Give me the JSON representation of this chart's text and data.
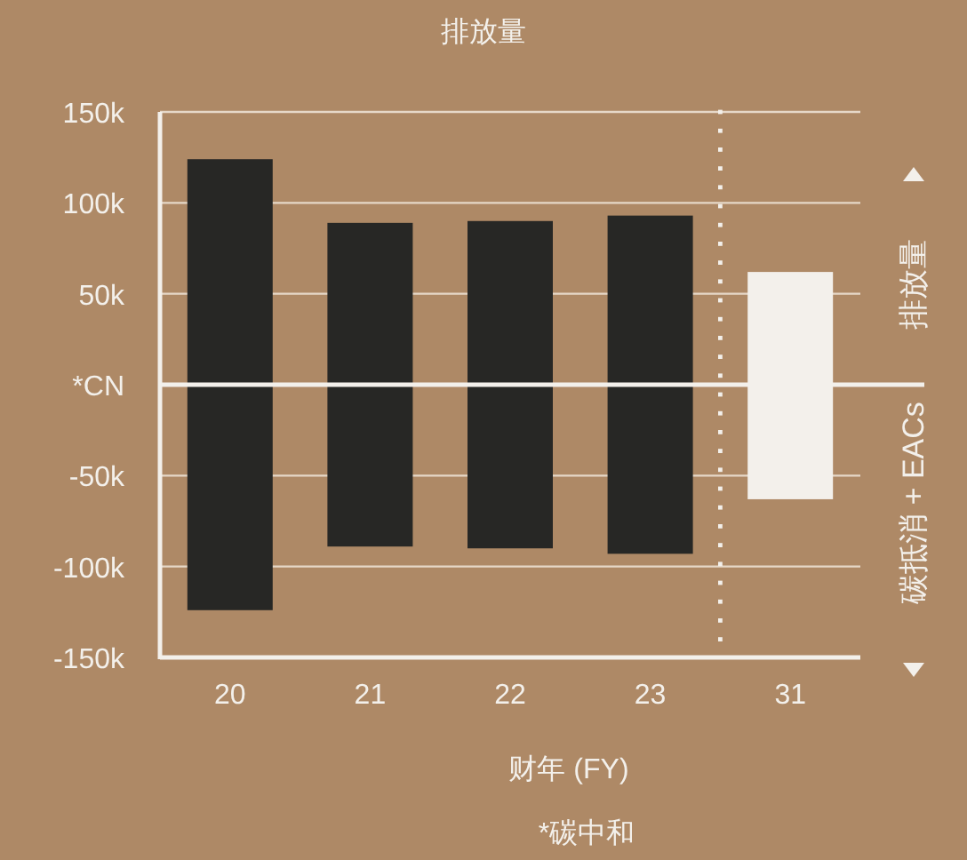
{
  "chart_data": {
    "type": "bar",
    "title": "排放量",
    "xlabel": "财年 (FY)",
    "categories": [
      "20",
      "21",
      "22",
      "23",
      "31"
    ],
    "stacked": true,
    "series": [
      {
        "name": "排放量",
        "colors": [
          "#272725",
          "#272725",
          "#272725",
          "#272725",
          "#f3f0eb"
        ],
        "values": [
          124000,
          89000,
          90000,
          93000,
          62000
        ]
      },
      {
        "name": "碳抵消 + EACs",
        "colors": [
          "#272725",
          "#272725",
          "#272725",
          "#272725",
          "#f3f0eb"
        ],
        "values": [
          -124000,
          -89000,
          -90000,
          -93000,
          -63000
        ]
      }
    ],
    "ylim": [
      -150000,
      150000
    ],
    "yticks": [
      {
        "value": -150000,
        "label": "-150k"
      },
      {
        "value": -100000,
        "label": "-100k"
      },
      {
        "value": -50000,
        "label": "-50k"
      },
      {
        "value": 0,
        "label": "*CN"
      },
      {
        "value": 50000,
        "label": "50k"
      },
      {
        "value": 100000,
        "label": "100k"
      },
      {
        "value": 150000,
        "label": "150k"
      }
    ],
    "grid": "y",
    "legend": "right",
    "annotations": [
      "*碳中和"
    ]
  }
}
